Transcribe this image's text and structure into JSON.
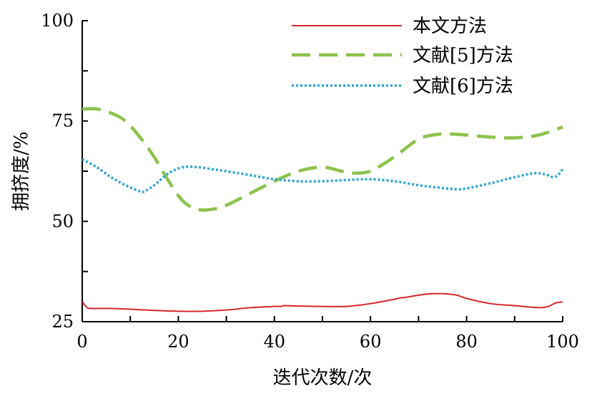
{
  "chart_data": {
    "type": "line",
    "xlabel": "迭代次数/次",
    "ylabel": "拥挤度/%",
    "xlim": [
      0,
      100
    ],
    "ylim": [
      25,
      100
    ],
    "xticks": [
      0,
      20,
      40,
      60,
      80,
      100
    ],
    "yticks": [
      25,
      50,
      75,
      100
    ],
    "grid": false,
    "legend_position": "top-right",
    "series": [
      {
        "name": "本文方法",
        "color": "#d62728",
        "style": "solid",
        "x": [
          0,
          1,
          2,
          5,
          10,
          15,
          20,
          25,
          30,
          35,
          40,
          41.5,
          42,
          45,
          50,
          55,
          60,
          65,
          66.5,
          67,
          70,
          72,
          74,
          76,
          78,
          80,
          85,
          90,
          95,
          97,
          98,
          99,
          100
        ],
        "y": [
          30,
          28.5,
          28.3,
          28.3,
          28.1,
          27.8,
          27.6,
          27.6,
          27.9,
          28.5,
          28.8,
          28.8,
          29,
          28.9,
          28.8,
          28.8,
          29.5,
          30.6,
          31,
          31,
          31.6,
          31.9,
          32,
          31.9,
          31.6,
          30.8,
          29.5,
          29,
          28.5,
          28.8,
          29.4,
          29.8,
          29.9
        ]
      },
      {
        "name": "文献[5]方法",
        "color": "#8bc34a",
        "style": "dashed",
        "x": [
          0,
          3,
          6,
          9,
          12,
          15,
          18,
          21,
          24,
          27,
          30,
          35,
          40,
          45,
          50,
          54,
          57,
          60,
          63,
          66,
          70,
          73,
          76,
          80,
          85,
          90,
          95,
          100
        ],
        "y": [
          78,
          78,
          77,
          75,
          71,
          66,
          60,
          55,
          53,
          53,
          54,
          57,
          60,
          62.5,
          63.5,
          62.5,
          62,
          62.5,
          64.5,
          67,
          70.5,
          71.5,
          71.8,
          71.5,
          71,
          70.8,
          71.5,
          73.5
        ]
      },
      {
        "name": "文献[6]方法",
        "color": "#2aa5d6",
        "style": "dotted",
        "x": [
          0,
          3,
          6,
          9,
          12,
          13,
          15,
          18,
          21,
          24,
          27,
          30,
          35,
          40,
          45,
          50,
          55,
          60,
          65,
          70,
          75,
          78,
          80,
          85,
          90,
          93,
          95,
          97,
          98,
          99,
          100
        ],
        "y": [
          65.5,
          63.5,
          61,
          59,
          57.5,
          57.5,
          59,
          62,
          63.5,
          63.5,
          63,
          62.5,
          61.5,
          60.5,
          60,
          60,
          60.3,
          60.5,
          60,
          59,
          58.3,
          58,
          58.2,
          59.5,
          61,
          61.8,
          62,
          61.5,
          61,
          61.5,
          63
        ]
      }
    ]
  }
}
